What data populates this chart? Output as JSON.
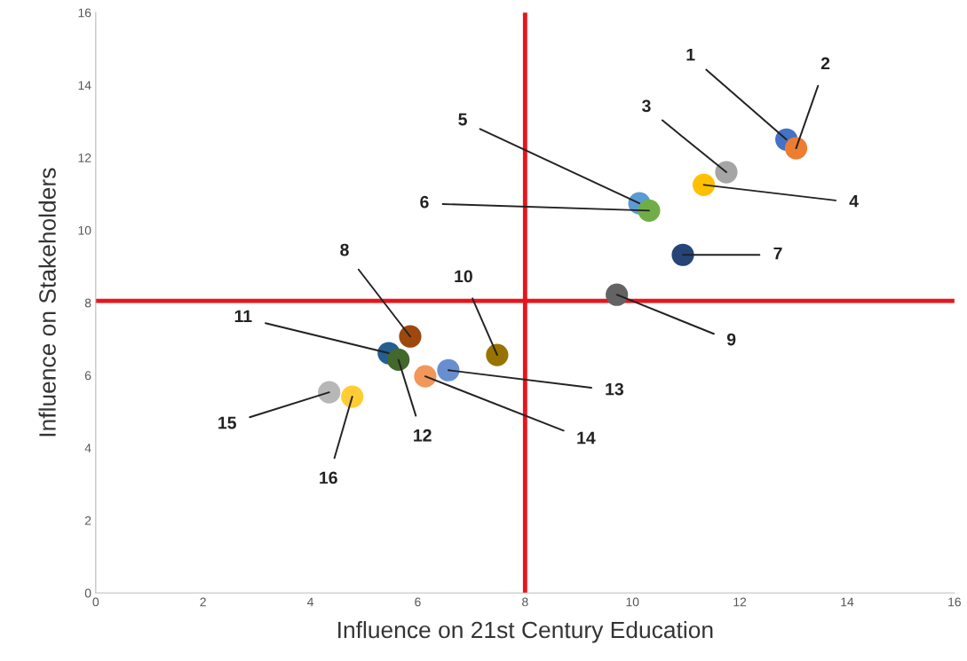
{
  "chart_data": {
    "type": "scatter",
    "xlabel": "Influence on 21st Century Education",
    "ylabel": "Influence on Stakeholders",
    "x": [
      12.87,
      13.05,
      11.75,
      11.33,
      10.13,
      10.31,
      10.94,
      5.86,
      9.71,
      7.48,
      5.46,
      5.64,
      6.57,
      6.14,
      4.35,
      4.78
    ],
    "values": [
      12.5,
      12.26,
      11.6,
      11.25,
      10.74,
      10.54,
      9.32,
      7.07,
      8.22,
      6.56,
      6.61,
      6.43,
      6.14,
      5.97,
      5.53,
      5.41
    ],
    "colors": [
      "#4472c4",
      "#ed7d31",
      "#a5a5a5",
      "#ffc000",
      "#5b9bd5",
      "#70ad47",
      "#264478",
      "#9e480e",
      "#636363",
      "#997300",
      "#255e91",
      "#43682b",
      "#698ed0",
      "#f1975a",
      "#b7b7b7",
      "#ffcd33"
    ],
    "marker": "circle",
    "annotations": [
      {
        "text": "1",
        "x": 12.87,
        "y": 12.5
      },
      {
        "text": "2",
        "x": 13.05,
        "y": 12.26
      },
      {
        "text": "3",
        "x": 11.75,
        "y": 11.6
      },
      {
        "text": "4",
        "x": 11.33,
        "y": 11.25
      },
      {
        "text": "5",
        "x": 10.13,
        "y": 10.74
      },
      {
        "text": "6",
        "x": 10.31,
        "y": 10.54
      },
      {
        "text": "7",
        "x": 10.94,
        "y": 9.32
      },
      {
        "text": "8",
        "x": 5.86,
        "y": 7.07
      },
      {
        "text": "9",
        "x": 9.71,
        "y": 8.22
      },
      {
        "text": "10",
        "x": 7.48,
        "y": 6.56
      },
      {
        "text": "11",
        "x": 5.46,
        "y": 6.61
      },
      {
        "text": "12",
        "x": 5.64,
        "y": 6.43
      },
      {
        "text": "13",
        "x": 6.57,
        "y": 6.14
      },
      {
        "text": "14",
        "x": 6.14,
        "y": 5.97
      },
      {
        "text": "15",
        "x": 4.35,
        "y": 5.53
      },
      {
        "text": "16",
        "x": 4.78,
        "y": 5.41
      }
    ],
    "ref_lines": [
      {
        "axis": "x",
        "value": 8,
        "color": "#e8141b"
      },
      {
        "axis": "y",
        "value": 8.05,
        "color": "#e8141b"
      }
    ],
    "xlim": [
      0,
      16
    ],
    "ylim": [
      0,
      16
    ],
    "xticks": [
      0,
      2,
      4,
      6,
      8,
      10,
      12,
      14,
      16
    ],
    "yticks": [
      0,
      2,
      4,
      6,
      8,
      10,
      12,
      14,
      16
    ],
    "grid": false
  }
}
